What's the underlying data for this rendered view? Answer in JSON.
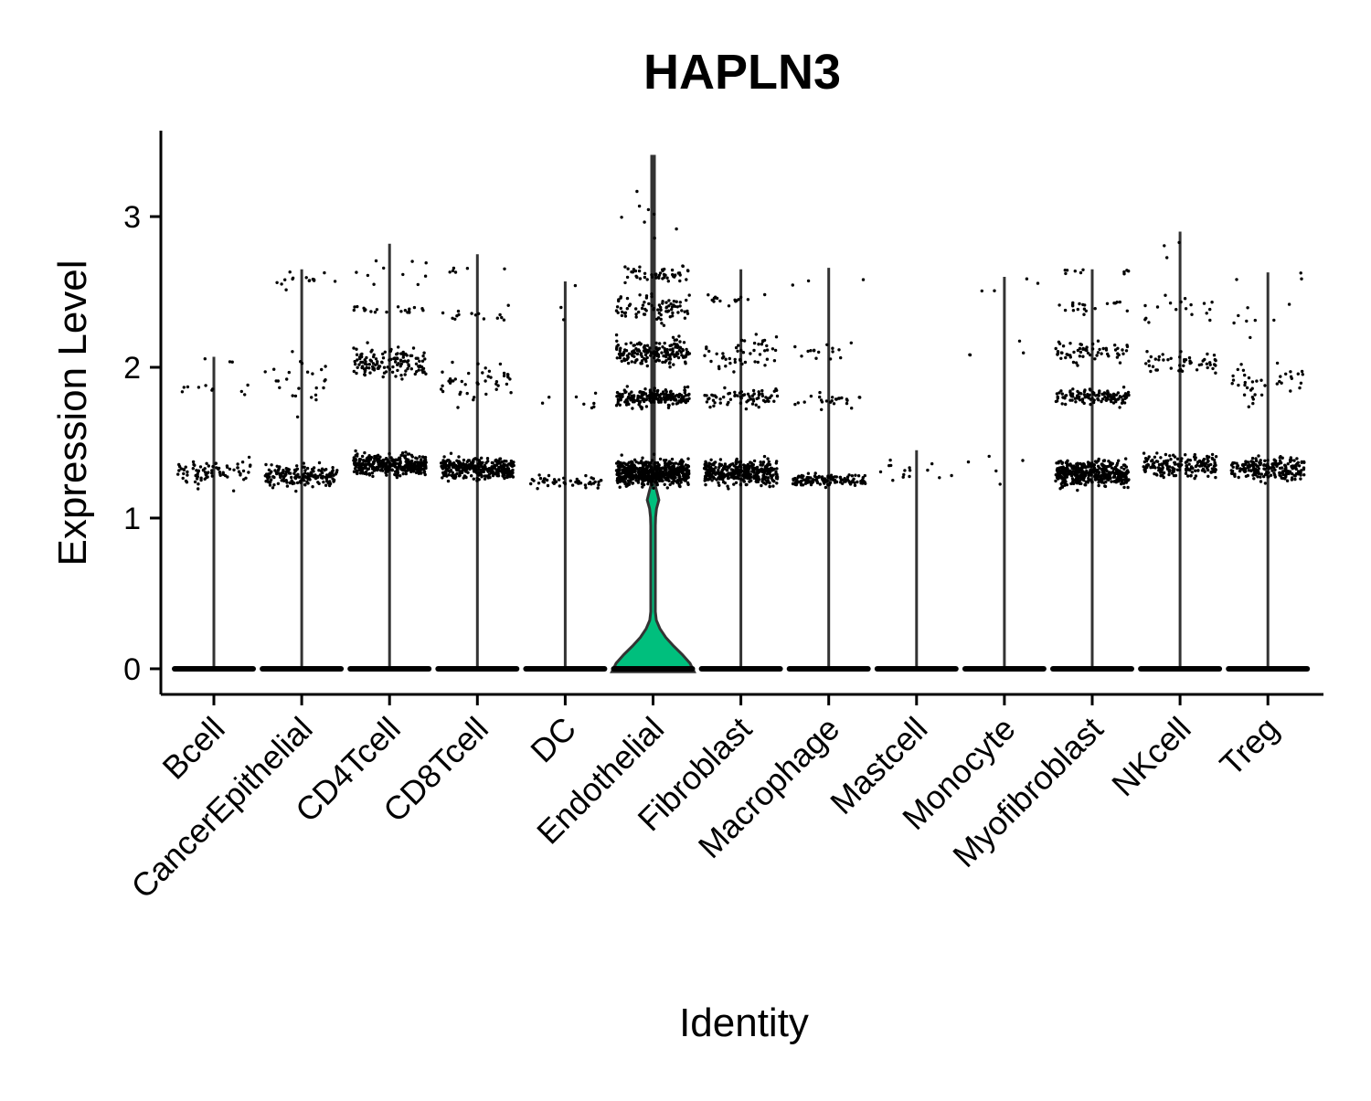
{
  "chart_data": {
    "type": "violin",
    "title": "HAPLN3",
    "xlabel": "Identity",
    "ylabel": "Expression Level",
    "ylim": [
      -0.17,
      3.57
    ],
    "yticks": [
      0,
      1,
      2,
      3
    ],
    "grid": false,
    "legend": "none",
    "categories": [
      "Bcell",
      "CancerEpithelial",
      "CD4Tcell",
      "CD8Tcell",
      "DC",
      "Endothelial",
      "Fibroblast",
      "Macrophage",
      "Mastcell",
      "Monocyte",
      "Myofibroblast",
      "NKcell",
      "Treg"
    ],
    "series": [
      {
        "category": "Bcell",
        "max": 2.07,
        "clusters": [
          {
            "center": 1.3,
            "spread": 0.09,
            "n": 80
          },
          {
            "center": 1.85,
            "spread": 0.05,
            "n": 10
          },
          {
            "center": 2.05,
            "spread": 0.02,
            "n": 3
          }
        ],
        "fill": "#00bfc4",
        "violin_width": 0
      },
      {
        "category": "CancerEpithelial",
        "max": 2.65,
        "clusters": [
          {
            "center": 1.28,
            "spread": 0.07,
            "n": 170
          },
          {
            "center": 1.9,
            "spread": 0.2,
            "n": 25
          },
          {
            "center": 2.58,
            "spread": 0.05,
            "n": 15
          }
        ],
        "fill": "#00bfc4",
        "violin_width": 0
      },
      {
        "category": "CD4Tcell",
        "max": 2.82,
        "clusters": [
          {
            "center": 1.35,
            "spread": 0.07,
            "n": 360
          },
          {
            "center": 2.03,
            "spread": 0.09,
            "n": 130
          },
          {
            "center": 2.38,
            "spread": 0.02,
            "n": 20
          },
          {
            "center": 2.65,
            "spread": 0.08,
            "n": 10
          }
        ],
        "fill": "#00bfc4",
        "violin_width": 0
      },
      {
        "category": "CD8Tcell",
        "max": 2.75,
        "clusters": [
          {
            "center": 1.33,
            "spread": 0.07,
            "n": 330
          },
          {
            "center": 1.9,
            "spread": 0.12,
            "n": 45
          },
          {
            "center": 2.35,
            "spread": 0.05,
            "n": 15
          },
          {
            "center": 2.65,
            "spread": 0.05,
            "n": 6
          }
        ],
        "fill": "#00bfc4",
        "violin_width": 0
      },
      {
        "category": "DC",
        "max": 2.57,
        "clusters": [
          {
            "center": 1.24,
            "spread": 0.04,
            "n": 50
          },
          {
            "center": 1.78,
            "spread": 0.06,
            "n": 8
          },
          {
            "center": 2.4,
            "spread": 0.2,
            "n": 3
          }
        ],
        "fill": "#00bfc4",
        "violin_width": 0
      },
      {
        "category": "Endothelial",
        "max": 3.4,
        "clusters": [
          {
            "center": 1.3,
            "spread": 0.08,
            "n": 600
          },
          {
            "center": 1.8,
            "spread": 0.06,
            "n": 200
          },
          {
            "center": 2.1,
            "spread": 0.08,
            "n": 180
          },
          {
            "center": 2.4,
            "spread": 0.1,
            "n": 80
          },
          {
            "center": 2.62,
            "spread": 0.05,
            "n": 50
          },
          {
            "center": 3.0,
            "spread": 0.22,
            "n": 8
          }
        ],
        "fill": "#00bf7d",
        "violin_width": 0.45
      },
      {
        "category": "Fibroblast",
        "max": 2.65,
        "clusters": [
          {
            "center": 1.3,
            "spread": 0.08,
            "n": 380
          },
          {
            "center": 1.8,
            "spread": 0.06,
            "n": 70
          },
          {
            "center": 2.1,
            "spread": 0.12,
            "n": 50
          },
          {
            "center": 2.45,
            "spread": 0.06,
            "n": 15
          }
        ],
        "fill": "#00bfc4",
        "violin_width": 0
      },
      {
        "category": "Macrophage",
        "max": 2.66,
        "clusters": [
          {
            "center": 1.25,
            "spread": 0.04,
            "n": 130
          },
          {
            "center": 1.78,
            "spread": 0.05,
            "n": 25
          },
          {
            "center": 2.12,
            "spread": 0.06,
            "n": 15
          },
          {
            "center": 2.55,
            "spread": 0.05,
            "n": 3
          }
        ],
        "fill": "#00bfc4",
        "violin_width": 0
      },
      {
        "category": "Mastcell",
        "max": 1.45,
        "clusters": [
          {
            "center": 1.28,
            "spread": 0.1,
            "n": 15
          }
        ],
        "fill": "#00bfc4",
        "violin_width": 0
      },
      {
        "category": "Monocyte",
        "max": 2.6,
        "clusters": [
          {
            "center": 1.35,
            "spread": 0.1,
            "n": 5
          },
          {
            "center": 2.1,
            "spread": 0.08,
            "n": 4
          },
          {
            "center": 2.55,
            "spread": 0.05,
            "n": 4
          }
        ],
        "fill": "#00bfc4",
        "violin_width": 0
      },
      {
        "category": "Myofibroblast",
        "max": 2.65,
        "clusters": [
          {
            "center": 1.3,
            "spread": 0.08,
            "n": 420
          },
          {
            "center": 1.8,
            "spread": 0.05,
            "n": 120
          },
          {
            "center": 2.1,
            "spread": 0.08,
            "n": 60
          },
          {
            "center": 2.4,
            "spread": 0.07,
            "n": 20
          },
          {
            "center": 2.63,
            "spread": 0.03,
            "n": 10
          }
        ],
        "fill": "#00bfc4",
        "violin_width": 0
      },
      {
        "category": "NKcell",
        "max": 2.9,
        "clusters": [
          {
            "center": 1.35,
            "spread": 0.08,
            "n": 180
          },
          {
            "center": 2.03,
            "spread": 0.07,
            "n": 50
          },
          {
            "center": 2.4,
            "spread": 0.1,
            "n": 18
          },
          {
            "center": 2.75,
            "spread": 0.12,
            "n": 3
          }
        ],
        "fill": "#00bfc4",
        "violin_width": 0
      },
      {
        "category": "Treg",
        "max": 2.63,
        "clusters": [
          {
            "center": 1.33,
            "spread": 0.08,
            "n": 200
          },
          {
            "center": 1.9,
            "spread": 0.12,
            "n": 40
          },
          {
            "center": 2.3,
            "spread": 0.15,
            "n": 8
          },
          {
            "center": 2.6,
            "spread": 0.03,
            "n": 3
          }
        ],
        "fill": "#00bfc4",
        "violin_width": 0
      }
    ],
    "zero_band": {
      "value": 0,
      "note_level": 0
    }
  }
}
